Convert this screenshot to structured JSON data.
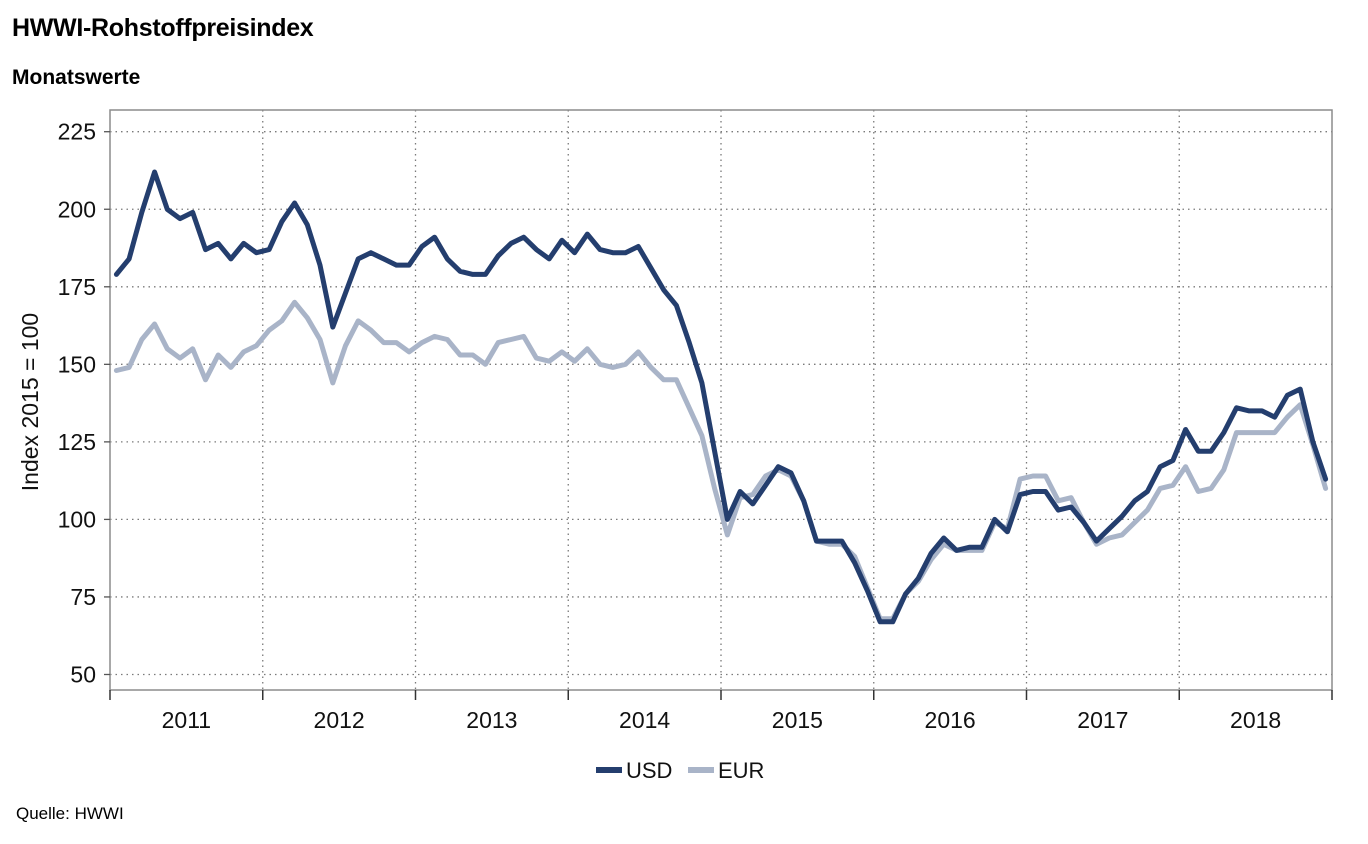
{
  "header": {
    "title": "HWWI-Rohstoffpreisindex",
    "subtitle": "Monatswerte"
  },
  "footer": {
    "source": "Quelle: HWWI"
  },
  "chart_data": {
    "type": "line",
    "ylabel": "Index 2015 = 100",
    "xlabel": "",
    "ylim": [
      45,
      232
    ],
    "yticks": [
      50,
      75,
      100,
      125,
      150,
      175,
      200,
      225
    ],
    "x_start": "2011-01",
    "x_end": "2018-12",
    "year_labels": [
      "2011",
      "2012",
      "2013",
      "2014",
      "2015",
      "2016",
      "2017",
      "2018"
    ],
    "grid": true,
    "legend_position": "bottom-center",
    "colors": {
      "USD": "#243e6e",
      "EUR": "#a9b4c8"
    },
    "series": [
      {
        "name": "USD",
        "values": [
          179,
          184,
          199,
          212,
          200,
          197,
          199,
          187,
          189,
          184,
          189,
          186,
          187,
          196,
          202,
          195,
          182,
          162,
          173,
          184,
          186,
          184,
          182,
          182,
          188,
          191,
          184,
          180,
          179,
          179,
          185,
          189,
          191,
          187,
          184,
          190,
          186,
          192,
          187,
          186,
          186,
          188,
          181,
          174,
          169,
          157,
          144,
          122,
          100,
          109,
          105,
          111,
          117,
          115,
          106,
          93,
          93,
          93,
          86,
          77,
          67,
          67,
          76,
          81,
          89,
          94,
          90,
          91,
          91,
          100,
          96,
          108,
          109,
          109,
          103,
          104,
          99,
          93,
          97,
          101,
          106,
          109,
          117,
          119,
          129,
          122,
          122,
          128,
          136,
          135,
          135,
          133,
          140,
          142,
          125,
          113
        ]
      },
      {
        "name": "EUR",
        "values": [
          148,
          149,
          158,
          163,
          155,
          152,
          155,
          145,
          153,
          149,
          154,
          156,
          161,
          164,
          170,
          165,
          158,
          144,
          156,
          164,
          161,
          157,
          157,
          154,
          157,
          159,
          158,
          153,
          153,
          150,
          157,
          158,
          159,
          152,
          151,
          154,
          151,
          155,
          150,
          149,
          150,
          154,
          149,
          145,
          145,
          136,
          127,
          110,
          95,
          107,
          108,
          114,
          116,
          114,
          106,
          93,
          92,
          92,
          88,
          78,
          68,
          68,
          76,
          80,
          87,
          92,
          90,
          90,
          90,
          99,
          97,
          113,
          114,
          114,
          106,
          107,
          99,
          92,
          94,
          95,
          99,
          103,
          110,
          111,
          117,
          109,
          110,
          116,
          128,
          128,
          128,
          128,
          133,
          137,
          124,
          110
        ]
      }
    ]
  }
}
